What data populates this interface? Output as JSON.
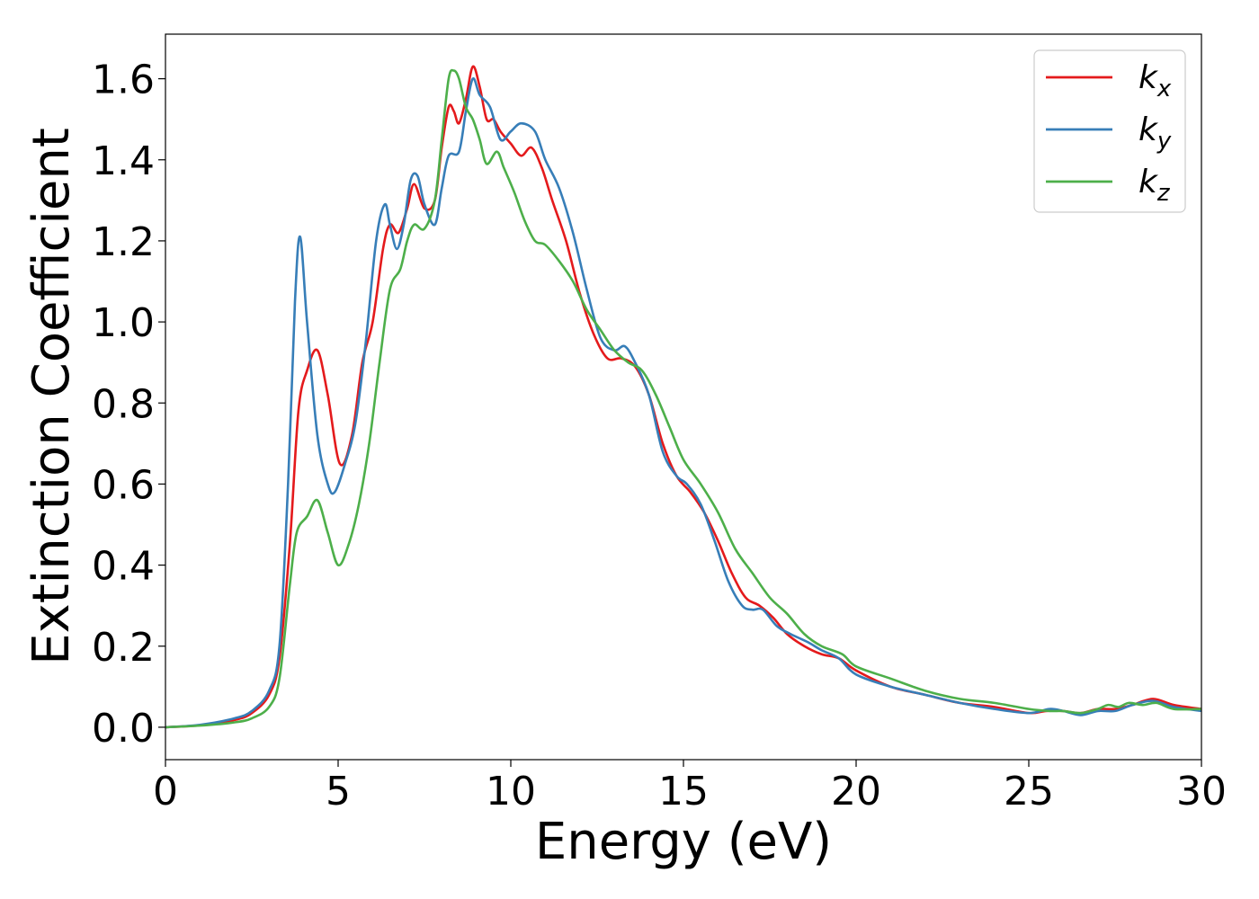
{
  "chart_data": {
    "type": "line",
    "title": "",
    "xlabel": "Energy (eV)",
    "ylabel": "Extinction Coefficient",
    "xlim": [
      0,
      30
    ],
    "ylim": [
      -0.08,
      1.71
    ],
    "xticks": [
      0,
      5,
      10,
      15,
      20,
      25,
      30
    ],
    "yticks": [
      0.0,
      0.2,
      0.4,
      0.6,
      0.8,
      1.0,
      1.2,
      1.4,
      1.6
    ],
    "yticks_labels": [
      "0.0",
      "0.2",
      "0.4",
      "0.6",
      "0.8",
      "1.0",
      "1.2",
      "1.4",
      "1.6"
    ],
    "grid": false,
    "legend_position": "top-right",
    "series": [
      {
        "name": "kx",
        "name_base": "k",
        "name_sub": "x",
        "color": "#e41a1c",
        "x": [
          0,
          1,
          2,
          2.5,
          3,
          3.3,
          3.6,
          3.85,
          4.1,
          4.4,
          4.7,
          5.05,
          5.4,
          5.7,
          6.0,
          6.3,
          6.5,
          6.75,
          7.0,
          7.2,
          7.5,
          7.8,
          8.0,
          8.2,
          8.35,
          8.5,
          8.7,
          8.9,
          9.1,
          9.3,
          9.5,
          9.7,
          10.0,
          10.3,
          10.6,
          10.9,
          11.2,
          11.6,
          12.0,
          12.4,
          12.8,
          13.2,
          13.6,
          14.0,
          14.4,
          14.8,
          15.2,
          15.6,
          16.0,
          16.4,
          16.8,
          17.2,
          17.6,
          18.0,
          18.5,
          19.0,
          19.5,
          20.0,
          21.0,
          22.0,
          23.0,
          24.0,
          25.0,
          25.5,
          26.0,
          26.5,
          27.0,
          27.5,
          28.0,
          28.6,
          29.2,
          30.0
        ],
        "y": [
          0.0,
          0.005,
          0.018,
          0.035,
          0.08,
          0.17,
          0.45,
          0.78,
          0.88,
          0.93,
          0.82,
          0.65,
          0.72,
          0.9,
          1.0,
          1.18,
          1.24,
          1.22,
          1.28,
          1.34,
          1.28,
          1.3,
          1.43,
          1.53,
          1.52,
          1.49,
          1.55,
          1.63,
          1.58,
          1.5,
          1.5,
          1.47,
          1.44,
          1.41,
          1.43,
          1.38,
          1.3,
          1.2,
          1.07,
          0.97,
          0.91,
          0.91,
          0.89,
          0.82,
          0.7,
          0.62,
          0.58,
          0.53,
          0.46,
          0.38,
          0.32,
          0.3,
          0.27,
          0.23,
          0.2,
          0.18,
          0.17,
          0.14,
          0.1,
          0.08,
          0.06,
          0.05,
          0.035,
          0.04,
          0.04,
          0.035,
          0.045,
          0.045,
          0.055,
          0.07,
          0.055,
          0.045
        ]
      },
      {
        "name": "ky",
        "name_base": "k",
        "name_sub": "y",
        "color": "#377eb8",
        "x": [
          0,
          1,
          2,
          2.5,
          3,
          3.3,
          3.55,
          3.75,
          3.9,
          4.1,
          4.4,
          4.7,
          4.9,
          5.2,
          5.5,
          5.8,
          6.1,
          6.35,
          6.5,
          6.7,
          6.9,
          7.1,
          7.3,
          7.5,
          7.8,
          8.0,
          8.2,
          8.5,
          8.7,
          8.9,
          9.1,
          9.4,
          9.7,
          10.0,
          10.3,
          10.7,
          11.0,
          11.4,
          11.8,
          12.2,
          12.6,
          13.0,
          13.3,
          13.6,
          14.0,
          14.4,
          14.8,
          15.1,
          15.5,
          15.9,
          16.3,
          16.7,
          17.0,
          17.3,
          17.7,
          18.1,
          18.6,
          19.0,
          19.5,
          20.0,
          21.0,
          22.0,
          23.0,
          24.0,
          25.0,
          25.6,
          26.0,
          26.5,
          27.0,
          27.5,
          28.0,
          28.6,
          29.2,
          30.0
        ],
        "y": [
          0.0,
          0.006,
          0.022,
          0.04,
          0.09,
          0.2,
          0.6,
          1.05,
          1.21,
          1.0,
          0.72,
          0.6,
          0.58,
          0.65,
          0.75,
          0.95,
          1.2,
          1.29,
          1.24,
          1.18,
          1.24,
          1.35,
          1.36,
          1.29,
          1.24,
          1.33,
          1.41,
          1.42,
          1.52,
          1.6,
          1.56,
          1.53,
          1.45,
          1.47,
          1.49,
          1.47,
          1.4,
          1.33,
          1.22,
          1.08,
          0.96,
          0.93,
          0.94,
          0.9,
          0.82,
          0.68,
          0.62,
          0.6,
          0.55,
          0.46,
          0.36,
          0.3,
          0.29,
          0.29,
          0.25,
          0.23,
          0.21,
          0.19,
          0.17,
          0.13,
          0.1,
          0.08,
          0.06,
          0.045,
          0.035,
          0.045,
          0.04,
          0.03,
          0.04,
          0.04,
          0.055,
          0.065,
          0.05,
          0.04
        ]
      },
      {
        "name": "kz",
        "name_base": "k",
        "name_sub": "z",
        "color": "#4daf4a",
        "x": [
          0,
          1,
          2,
          2.5,
          3,
          3.3,
          3.6,
          3.8,
          4.1,
          4.4,
          4.7,
          5.0,
          5.3,
          5.6,
          5.9,
          6.2,
          6.5,
          6.8,
          7.0,
          7.2,
          7.5,
          7.8,
          8.0,
          8.2,
          8.35,
          8.5,
          8.7,
          8.9,
          9.1,
          9.3,
          9.6,
          9.8,
          10.1,
          10.4,
          10.7,
          11.0,
          11.4,
          11.8,
          12.2,
          12.6,
          13.0,
          13.4,
          13.8,
          14.2,
          14.6,
          15.0,
          15.5,
          16.0,
          16.5,
          17.0,
          17.5,
          18.0,
          18.5,
          19.0,
          19.6,
          20.0,
          21.0,
          22.0,
          23.0,
          24.0,
          25.0,
          25.6,
          26.0,
          26.5,
          27.0,
          27.3,
          27.6,
          27.9,
          28.3,
          28.7,
          29.2,
          30.0
        ],
        "y": [
          0.0,
          0.004,
          0.012,
          0.022,
          0.05,
          0.12,
          0.35,
          0.48,
          0.52,
          0.56,
          0.48,
          0.4,
          0.45,
          0.55,
          0.7,
          0.9,
          1.08,
          1.13,
          1.2,
          1.24,
          1.23,
          1.3,
          1.45,
          1.6,
          1.62,
          1.6,
          1.53,
          1.5,
          1.45,
          1.39,
          1.42,
          1.38,
          1.32,
          1.25,
          1.2,
          1.19,
          1.15,
          1.1,
          1.03,
          0.98,
          0.93,
          0.9,
          0.88,
          0.82,
          0.74,
          0.66,
          0.6,
          0.53,
          0.44,
          0.38,
          0.32,
          0.28,
          0.23,
          0.2,
          0.18,
          0.15,
          0.12,
          0.09,
          0.07,
          0.06,
          0.045,
          0.04,
          0.04,
          0.035,
          0.045,
          0.055,
          0.05,
          0.06,
          0.055,
          0.06,
          0.045,
          0.045
        ]
      }
    ]
  }
}
